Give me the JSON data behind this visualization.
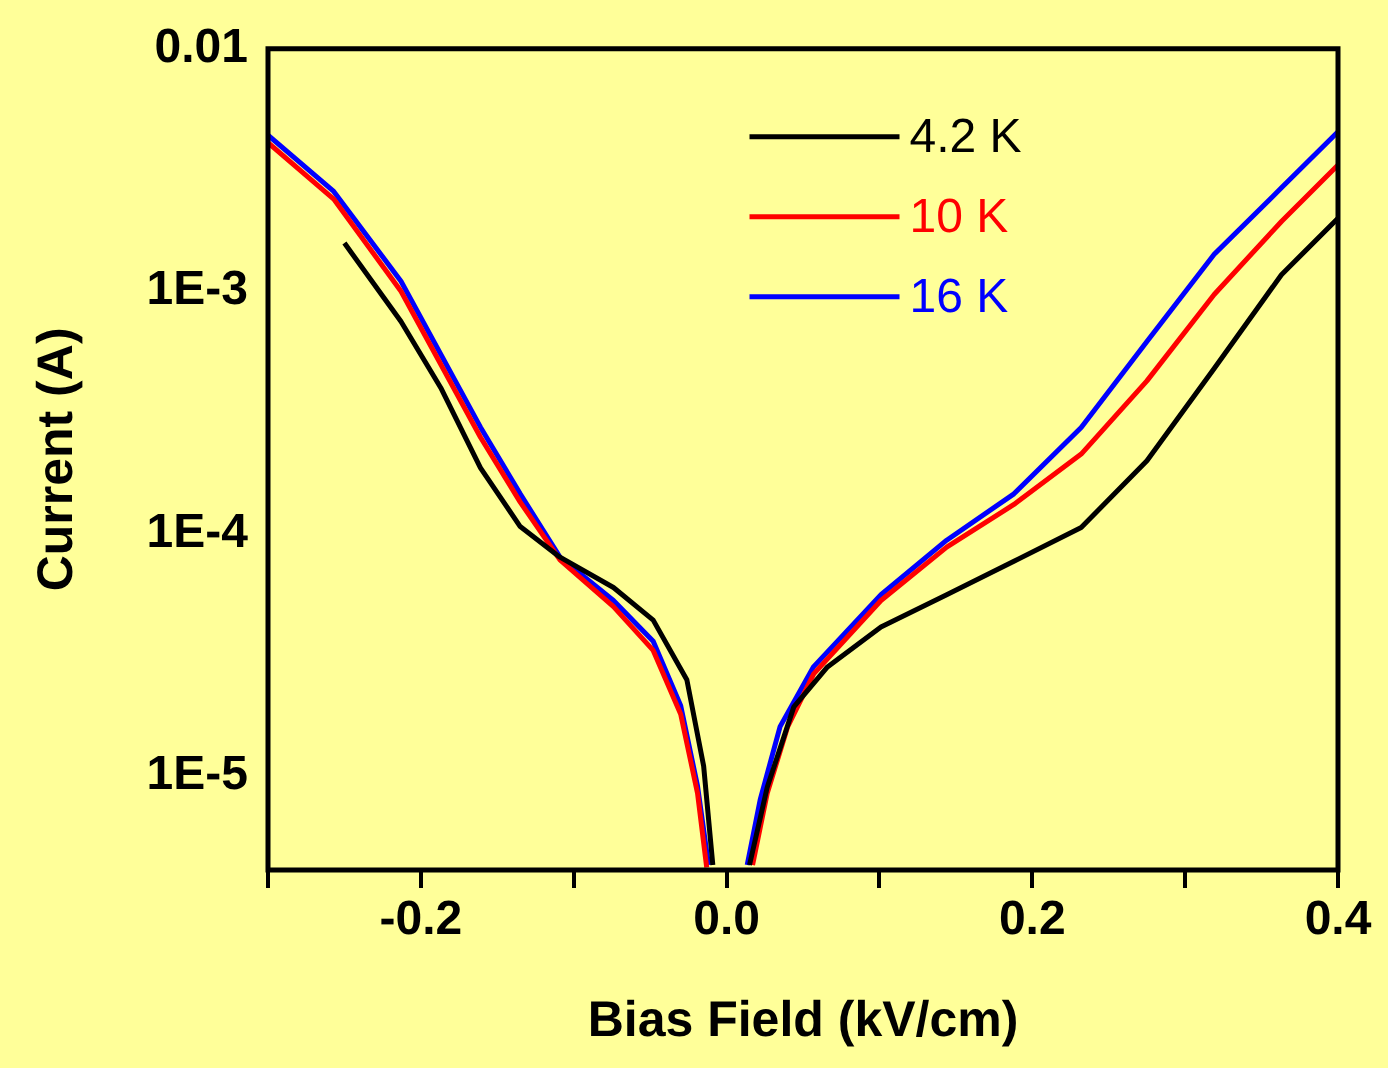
{
  "chart_data": {
    "type": "line",
    "xlabel": "Bias Field (kV/cm)",
    "ylabel": "Current (A)",
    "xlim": [
      -0.3,
      0.4
    ],
    "ylim": [
      4.1e-06,
      0.01
    ],
    "log": "y",
    "grid": false,
    "legend": "top right",
    "marker": "none",
    "line_style": "solid",
    "xticks": [
      {
        "value": -0.3,
        "label": null
      },
      {
        "value": -0.2,
        "label": "-0.2"
      },
      {
        "value": -0.1,
        "label": null
      },
      {
        "value": 0,
        "label": "0.0"
      },
      {
        "value": 0.1,
        "label": null
      },
      {
        "value": 0.2,
        "label": "0.2"
      },
      {
        "value": 0.3,
        "label": null
      },
      {
        "value": 0.4,
        "label": "0.4"
      }
    ],
    "yticks": [
      {
        "value": 0.01,
        "label": "0.01"
      },
      {
        "value": 0.001,
        "label": "1E-3"
      },
      {
        "value": 0.0001,
        "label": "1E-4"
      },
      {
        "value": 1e-05,
        "label": "1E-5"
      }
    ],
    "series": [
      {
        "name": "4.2 K",
        "color": "#000000",
        "x": [
          -0.25,
          -0.213,
          -0.187,
          -0.161,
          -0.135,
          -0.109,
          -0.074,
          -0.048,
          -0.026,
          -0.015,
          -0.009,
          0,
          0.015,
          0.0266,
          0.044,
          0.066,
          0.101,
          0.144,
          0.188,
          0.232,
          0.275,
          0.319,
          0.363,
          0.4
        ],
        "values": [
          0.00158,
          0.00075,
          0.0004,
          0.000187,
          0.000107,
          8e-05,
          6e-05,
          4.4e-05,
          2.5e-05,
          1.1e-05,
          4.3e-06,
          null,
          4.3e-06,
          9e-06,
          1.93e-05,
          2.82e-05,
          4.12e-05,
          5.6e-05,
          7.7e-05,
          0.000106,
          0.0002,
          0.00048,
          0.00117,
          0.002
        ]
      },
      {
        "name": "10 K",
        "color": "#ff0000",
        "x": [
          -0.3,
          -0.257,
          -0.213,
          -0.187,
          -0.161,
          -0.135,
          -0.109,
          -0.074,
          -0.048,
          -0.03,
          -0.019,
          -0.013,
          0,
          0.017,
          0.0266,
          0.04,
          0.057,
          0.101,
          0.144,
          0.188,
          0.232,
          0.275,
          0.319,
          0.363,
          0.4
        ],
        "values": [
          0.0041,
          0.0024,
          0.001,
          0.0005,
          0.00025,
          0.000135,
          7.8e-05,
          5e-05,
          3.3e-05,
          1.8e-05,
          8.5e-06,
          4.2e-06,
          null,
          4.3e-06,
          8.5e-06,
          1.6e-05,
          2.64e-05,
          5.3e-05,
          8.8e-05,
          0.000132,
          0.000213,
          0.000427,
          0.00097,
          0.00194,
          0.00332
        ]
      },
      {
        "name": "16 K",
        "color": "#0000ff",
        "x": [
          -0.3,
          -0.257,
          -0.213,
          -0.187,
          -0.161,
          -0.135,
          -0.109,
          -0.074,
          -0.048,
          -0.03,
          -0.019,
          -0.0118,
          0,
          0.0135,
          0.022,
          0.035,
          0.057,
          0.101,
          0.144,
          0.188,
          0.232,
          0.275,
          0.319,
          0.363,
          0.4
        ],
        "values": [
          0.0044,
          0.00258,
          0.0011,
          0.00055,
          0.000275,
          0.000146,
          8e-05,
          5.3e-05,
          3.6e-05,
          1.95e-05,
          9.1e-06,
          4.3e-06,
          null,
          4.3e-06,
          8e-06,
          1.6e-05,
          2.83e-05,
          5.6e-05,
          9.4e-05,
          0.000146,
          0.000274,
          0.00062,
          0.00142,
          0.00267,
          0.00455
        ]
      }
    ]
  }
}
